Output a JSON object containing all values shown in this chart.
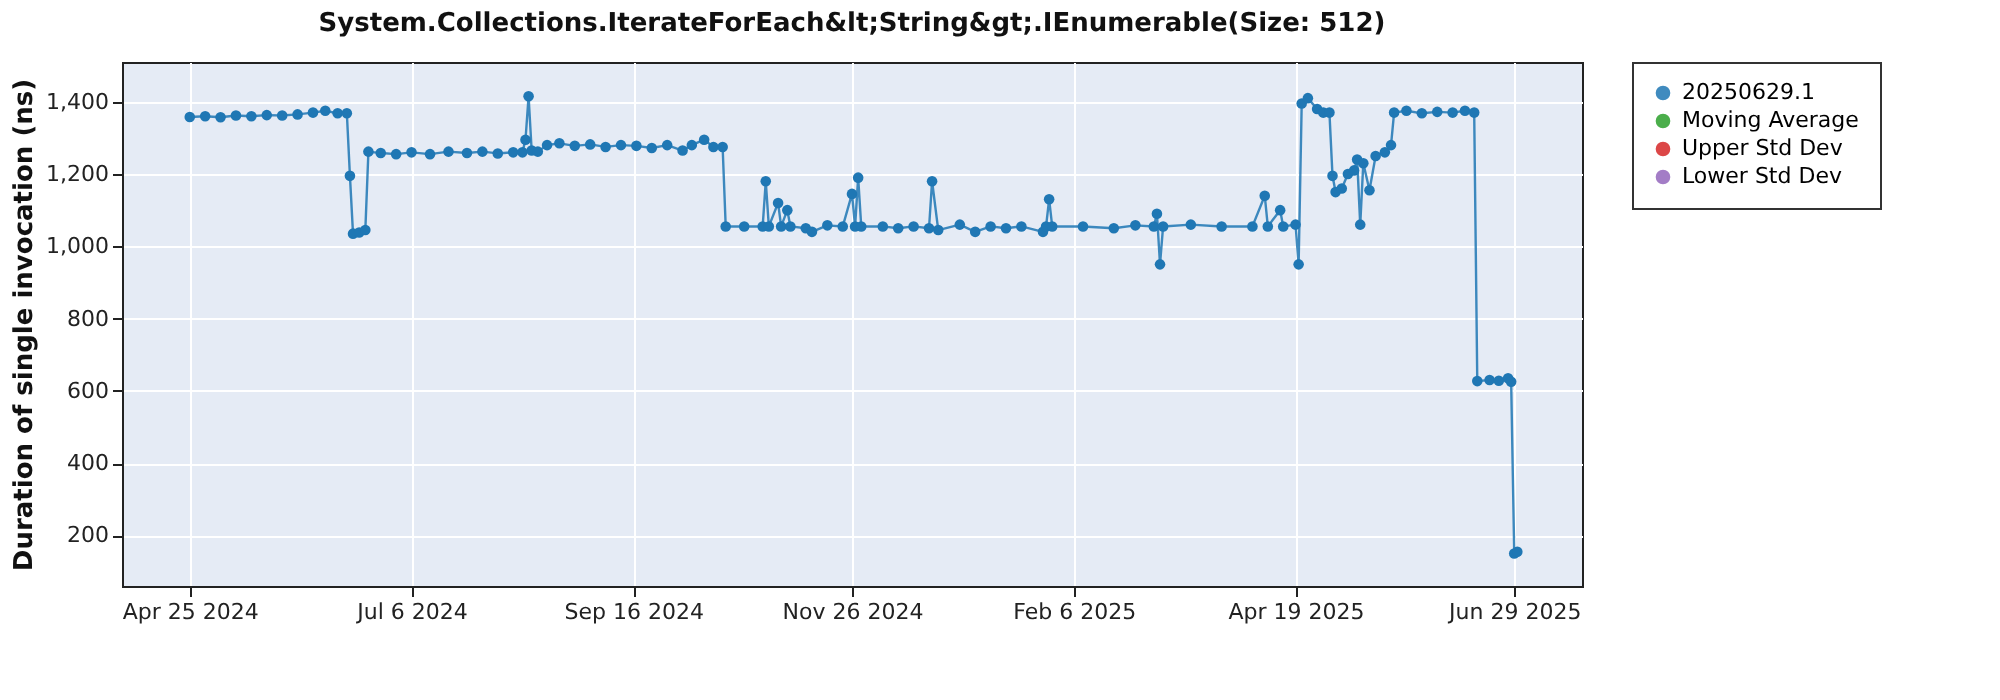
{
  "chart_data": {
    "type": "line",
    "title": "System.Collections.IterateForEach&lt;String&gt;.IEnumerable(Size: 512)",
    "ylabel": "Duration of single invocation (ns)",
    "xlim": [
      "2024-04-03",
      "2025-07-21"
    ],
    "xticks": [
      {
        "value": "2024-04-25",
        "label": "Apr 25 2024"
      },
      {
        "value": "2024-07-06",
        "label": "Jul 6 2024"
      },
      {
        "value": "2024-09-16",
        "label": "Sep 16 2024"
      },
      {
        "value": "2024-11-26",
        "label": "Nov 26 2024"
      },
      {
        "value": "2025-02-06",
        "label": "Feb 6 2025"
      },
      {
        "value": "2025-04-19",
        "label": "Apr 19 2025"
      },
      {
        "value": "2025-06-29",
        "label": "Jun 29 2025"
      }
    ],
    "ylim": [
      60,
      1510
    ],
    "yticks": [
      {
        "value": 200,
        "label": "200"
      },
      {
        "value": 400,
        "label": "400"
      },
      {
        "value": 600,
        "label": "600"
      },
      {
        "value": 800,
        "label": "800"
      },
      {
        "value": 1000,
        "label": "1,000"
      },
      {
        "value": 1200,
        "label": "1,200"
      },
      {
        "value": 1400,
        "label": "1,400"
      }
    ],
    "grid": true,
    "legend": "right",
    "marker": "circle",
    "line_style": "solid",
    "series": [
      {
        "name": "20250629.1",
        "color": "#1f77b4",
        "x": [
          "2024-04-25",
          "2024-04-30",
          "2024-05-05",
          "2024-05-10",
          "2024-05-15",
          "2024-05-20",
          "2024-05-25",
          "2024-05-30",
          "2024-06-04",
          "2024-06-08",
          "2024-06-12",
          "2024-06-15",
          "2024-06-16",
          "2024-06-17",
          "2024-06-19",
          "2024-06-21",
          "2024-06-22",
          "2024-06-26",
          "2024-07-01",
          "2024-07-06",
          "2024-07-12",
          "2024-07-18",
          "2024-07-24",
          "2024-07-29",
          "2024-08-03",
          "2024-08-08",
          "2024-08-11",
          "2024-08-12",
          "2024-08-13",
          "2024-08-14",
          "2024-08-16",
          "2024-08-19",
          "2024-08-23",
          "2024-08-28",
          "2024-09-02",
          "2024-09-07",
          "2024-09-12",
          "2024-09-17",
          "2024-09-22",
          "2024-09-27",
          "2024-10-02",
          "2024-10-05",
          "2024-10-09",
          "2024-10-12",
          "2024-10-15",
          "2024-10-16",
          "2024-10-22",
          "2024-10-28",
          "2024-10-29",
          "2024-10-30",
          "2024-11-02",
          "2024-11-03",
          "2024-11-05",
          "2024-11-06",
          "2024-11-11",
          "2024-11-13",
          "2024-11-18",
          "2024-11-23",
          "2024-11-26",
          "2024-11-27",
          "2024-11-28",
          "2024-11-29",
          "2024-12-06",
          "2024-12-11",
          "2024-12-16",
          "2024-12-21",
          "2024-12-22",
          "2024-12-24",
          "2024-12-31",
          "2025-01-05",
          "2025-01-10",
          "2025-01-15",
          "2025-01-20",
          "2025-01-27",
          "2025-01-28",
          "2025-01-29",
          "2025-01-30",
          "2025-02-09",
          "2025-02-19",
          "2025-02-26",
          "2025-03-04",
          "2025-03-05",
          "2025-03-06",
          "2025-03-07",
          "2025-03-16",
          "2025-03-26",
          "2025-04-05",
          "2025-04-09",
          "2025-04-10",
          "2025-04-14",
          "2025-04-15",
          "2025-04-19",
          "2025-04-20",
          "2025-04-21",
          "2025-04-23",
          "2025-04-26",
          "2025-04-28",
          "2025-04-30",
          "2025-05-01",
          "2025-05-02",
          "2025-05-04",
          "2025-05-06",
          "2025-05-08",
          "2025-05-09",
          "2025-05-10",
          "2025-05-11",
          "2025-05-13",
          "2025-05-15",
          "2025-05-18",
          "2025-05-20",
          "2025-05-21",
          "2025-05-25",
          "2025-05-30",
          "2025-06-04",
          "2025-06-09",
          "2025-06-13",
          "2025-06-16",
          "2025-06-17",
          "2025-06-21",
          "2025-06-24",
          "2025-06-27",
          "2025-06-28",
          "2025-06-29",
          "2025-06-30"
        ],
        "values": [
          1358,
          1360,
          1357,
          1362,
          1360,
          1363,
          1362,
          1365,
          1370,
          1375,
          1368,
          1368,
          1195,
          1035,
          1038,
          1045,
          1262,
          1258,
          1255,
          1260,
          1255,
          1262,
          1258,
          1262,
          1257,
          1260,
          1260,
          1295,
          1415,
          1265,
          1262,
          1280,
          1285,
          1278,
          1282,
          1275,
          1280,
          1278,
          1272,
          1280,
          1265,
          1280,
          1295,
          1275,
          1275,
          1055,
          1055,
          1055,
          1180,
          1055,
          1120,
          1055,
          1100,
          1055,
          1050,
          1040,
          1058,
          1055,
          1145,
          1055,
          1190,
          1055,
          1055,
          1050,
          1055,
          1050,
          1180,
          1045,
          1060,
          1040,
          1055,
          1050,
          1055,
          1040,
          1055,
          1130,
          1055,
          1055,
          1050,
          1058,
          1055,
          1090,
          950,
          1055,
          1060,
          1055,
          1055,
          1140,
          1055,
          1100,
          1055,
          1060,
          950,
          1395,
          1410,
          1380,
          1370,
          1370,
          1195,
          1150,
          1160,
          1200,
          1210,
          1240,
          1060,
          1230,
          1155,
          1250,
          1260,
          1280,
          1370,
          1375,
          1368,
          1372,
          1370,
          1375,
          1370,
          627,
          630,
          628,
          635,
          625,
          150,
          155
        ]
      },
      {
        "name": "Moving Average",
        "color": "#2ca02c"
      },
      {
        "name": "Upper Std Dev",
        "color": "#d62728"
      },
      {
        "name": "Lower Std Dev",
        "color": "#9467bd"
      }
    ]
  }
}
